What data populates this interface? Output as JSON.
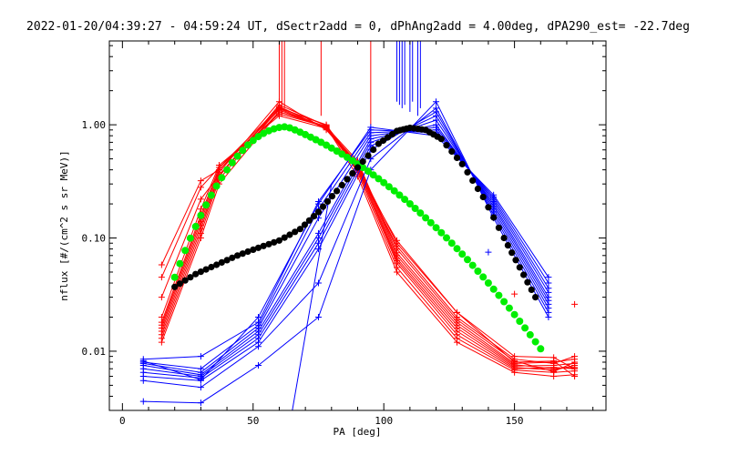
{
  "chart_data": {
    "type": "line",
    "title": "2022-01-20/04:39:27 - 04:59:24 UT, dSectr2add = 0, dPhAng2add = 4.00deg, dPA290_est= -22.7deg",
    "xlabel": "PA [deg]",
    "ylabel": "nflux [#/(cm^2 s sr MeV)]",
    "xlim": [
      -5,
      185
    ],
    "ylim": [
      0.003,
      5.5
    ],
    "yscale": "log",
    "grid": false,
    "x_ticks": [
      {
        "value": 0,
        "label": "0"
      },
      {
        "value": 50,
        "label": "50"
      },
      {
        "value": 100,
        "label": "100"
      },
      {
        "value": 150,
        "label": "150"
      }
    ],
    "y_ticks": [
      {
        "value": 0.01,
        "label": "0.01"
      },
      {
        "value": 0.1,
        "label": "0.10"
      },
      {
        "value": 1,
        "label": "1.00"
      }
    ],
    "colors": {
      "red": "#ff0000",
      "blue": "#0000ff",
      "green": "#00ee00",
      "black": "#000000"
    },
    "red_pa": [
      15,
      30,
      37,
      60,
      78,
      90,
      105,
      128,
      150,
      165,
      173
    ],
    "red_series": [
      [
        0.012,
        0.1,
        0.3,
        1.3,
        0.95,
        0.35,
        0.05,
        0.012,
        0.0065,
        0.006,
        0.0062
      ],
      [
        0.013,
        0.11,
        0.33,
        1.4,
        1.0,
        0.38,
        0.055,
        0.013,
        0.0068,
        0.0065,
        0.0067
      ],
      [
        0.014,
        0.12,
        0.35,
        1.5,
        0.98,
        0.4,
        0.06,
        0.014,
        0.007,
        0.0072,
        0.007
      ],
      [
        0.015,
        0.13,
        0.36,
        1.45,
        0.92,
        0.42,
        0.063,
        0.015,
        0.0072,
        0.0068,
        0.0075
      ],
      [
        0.016,
        0.14,
        0.38,
        1.6,
        0.9,
        0.44,
        0.066,
        0.016,
        0.0074,
        0.0075,
        0.0078
      ],
      [
        0.017,
        0.15,
        0.4,
        1.35,
        0.94,
        0.46,
        0.07,
        0.017,
        0.0076,
        0.007,
        0.0072
      ],
      [
        0.018,
        0.16,
        0.42,
        1.25,
        0.96,
        0.48,
        0.074,
        0.018,
        0.0078,
        0.008,
        0.0085
      ],
      [
        0.02,
        0.18,
        0.44,
        1.2,
        0.93,
        0.45,
        0.08,
        0.019,
        0.0082,
        0.0066,
        0.008
      ],
      [
        0.03,
        0.22,
        0.36,
        1.3,
        0.97,
        0.41,
        0.085,
        0.02,
        0.0085,
        0.0078,
        0.009
      ],
      [
        0.045,
        0.28,
        0.42,
        1.42,
        0.99,
        0.43,
        0.09,
        0.022,
        0.009,
        0.0088,
        0.007
      ],
      [
        0.058,
        0.32,
        0.4,
        1.38,
        0.95,
        0.39,
        0.095,
        0.022,
        0.008,
        0.0082,
        0.006
      ]
    ],
    "red_spikes": [
      {
        "x": 60,
        "y": 1.6
      },
      {
        "x": 61,
        "y": 1.5
      },
      {
        "x": 62,
        "y": 1.4
      },
      {
        "x": 76,
        "y": 1.2
      },
      {
        "x": 95,
        "y": 1.0
      }
    ],
    "red_extra_points": [
      {
        "x": 150,
        "y": 0.032
      },
      {
        "x": 173,
        "y": 0.026
      }
    ],
    "blue_pa": [
      8,
      30,
      52,
      75,
      95,
      120,
      142,
      163
    ],
    "blue_series": [
      [
        0.0036,
        0.0035,
        0.0075,
        0.02,
        0.4,
        1.6,
        0.15,
        0.02
      ],
      [
        0.0055,
        0.0048,
        0.011,
        0.04,
        0.5,
        1.4,
        0.16,
        0.022
      ],
      [
        0.006,
        0.0055,
        0.012,
        0.08,
        0.6,
        1.3,
        0.17,
        0.024
      ],
      [
        0.0065,
        0.0058,
        0.013,
        0.09,
        0.65,
        1.2,
        0.18,
        0.026
      ],
      [
        0.007,
        0.006,
        0.014,
        0.1,
        0.7,
        1.1,
        0.19,
        0.028
      ],
      [
        0.0075,
        0.0062,
        0.015,
        0.11,
        0.75,
        1.0,
        0.2,
        0.03
      ],
      [
        0.0078,
        0.0065,
        0.016,
        0.15,
        0.8,
        0.95,
        0.21,
        0.033
      ],
      [
        0.008,
        0.007,
        0.017,
        0.18,
        0.85,
        0.9,
        0.22,
        0.036
      ],
      [
        0.0085,
        0.009,
        0.018,
        0.21,
        0.9,
        0.85,
        0.23,
        0.04
      ],
      [
        0.0082,
        0.0056,
        0.02,
        0.2,
        0.95,
        0.8,
        0.24,
        0.045
      ]
    ],
    "blue_spikes": [
      {
        "x": 105,
        "y": 1.6
      },
      {
        "x": 106,
        "y": 1.5
      },
      {
        "x": 107,
        "y": 1.4
      },
      {
        "x": 108,
        "y": 1.5
      },
      {
        "x": 110,
        "y": 1.3
      },
      {
        "x": 111,
        "y": 1.6
      },
      {
        "x": 113,
        "y": 1.2
      },
      {
        "x": 114,
        "y": 1.4
      }
    ],
    "blue_dropline": {
      "x1": 80,
      "y1": 0.3,
      "x2": 65,
      "y2": 0.003
    },
    "blue_extra_points": [
      {
        "x": 140,
        "y": 0.075
      }
    ],
    "green_curve": {
      "x_start": 20,
      "x_end": 160,
      "step": 2,
      "peak_x": 63,
      "peak_y": 0.96,
      "y_at_start": 0.045,
      "y_at_end": 0.0105
    },
    "black_curve": {
      "x": [
        20,
        28,
        36,
        44,
        52,
        60,
        68,
        75,
        82,
        90,
        98,
        105,
        110,
        116,
        122,
        130,
        138,
        146,
        152,
        158
      ],
      "y": [
        0.037,
        0.048,
        0.058,
        0.07,
        0.082,
        0.095,
        0.12,
        0.17,
        0.26,
        0.42,
        0.68,
        0.88,
        0.94,
        0.9,
        0.75,
        0.45,
        0.23,
        0.1,
        0.055,
        0.03
      ]
    }
  }
}
